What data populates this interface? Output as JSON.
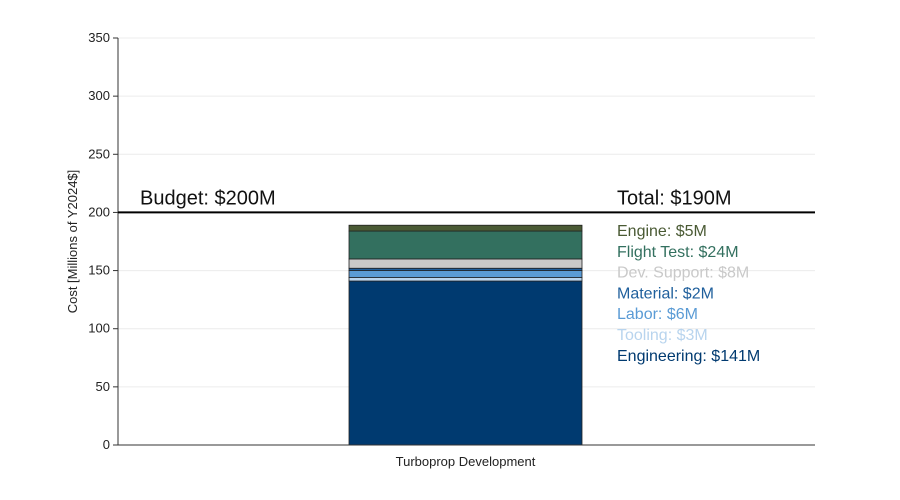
{
  "chart_data": {
    "type": "bar",
    "stacked": true,
    "categories": [
      "Turboprop Development"
    ],
    "series": [
      {
        "name": "Engineering: $141M",
        "values": [
          141
        ],
        "color": "#003a70"
      },
      {
        "name": "Tooling: $3M",
        "values": [
          3
        ],
        "color": "#b8d4ee"
      },
      {
        "name": "Labor: $6M",
        "values": [
          6
        ],
        "color": "#5a9bd5"
      },
      {
        "name": "Material: $2M",
        "values": [
          2
        ],
        "color": "#1f5f9c"
      },
      {
        "name": "Dev. Support: $8M",
        "values": [
          8
        ],
        "color": "#c9c9c9"
      },
      {
        "name": "Flight Test: $24M",
        "values": [
          24
        ],
        "color": "#33705f"
      },
      {
        "name": "Engine: $5M",
        "values": [
          5
        ],
        "color": "#4a5a34"
      }
    ],
    "budget": {
      "value": 200,
      "label": "Budget: $200M"
    },
    "total": {
      "value": 190,
      "label": "Total: $190M"
    },
    "ylabel": "Cost [Millions of Y2024$]",
    "xlabel": "",
    "ylim": [
      0,
      350
    ],
    "yticks": [
      0,
      50,
      100,
      150,
      200,
      250,
      300,
      350
    ],
    "grid": true,
    "legend": "inline-right"
  }
}
